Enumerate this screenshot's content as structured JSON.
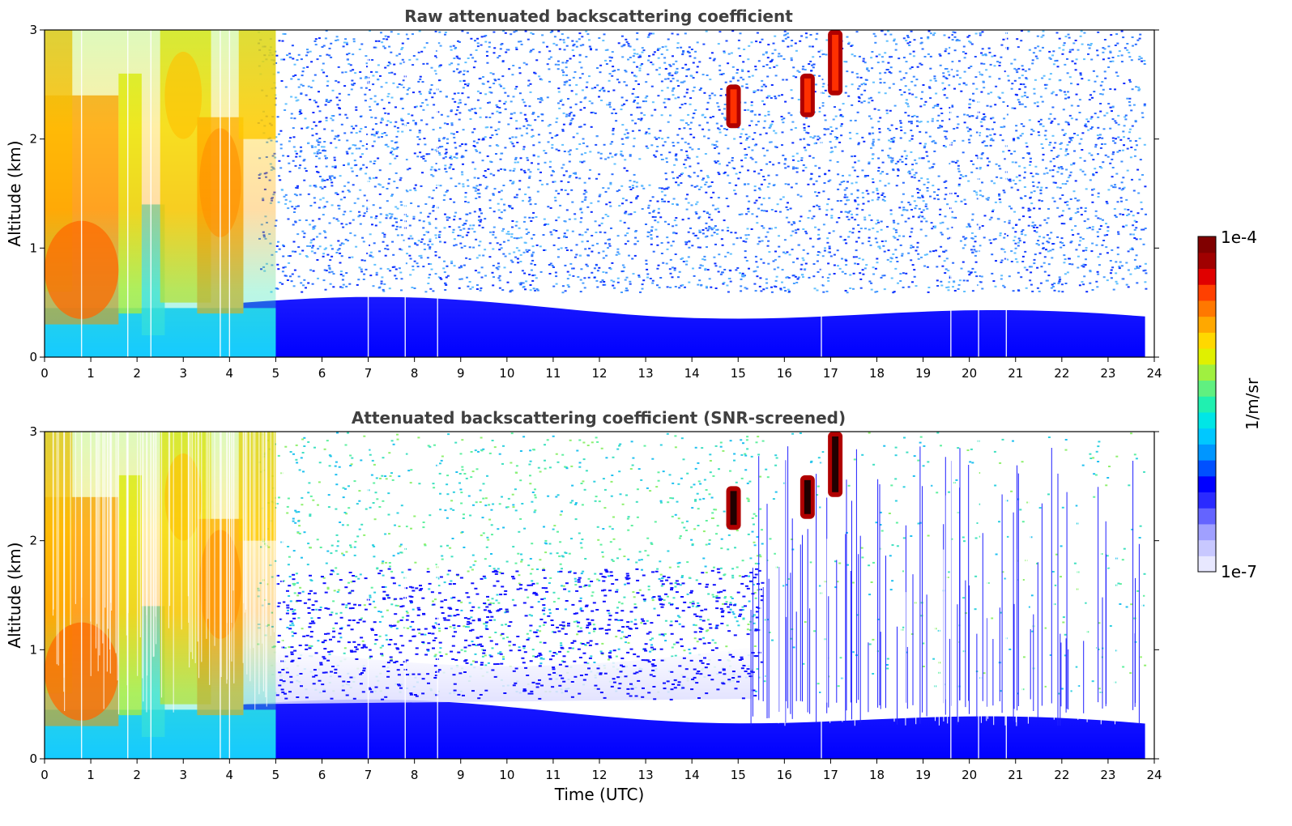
{
  "chart_data": [
    {
      "type": "heatmap",
      "title": "Raw attenuated backscattering coefficient",
      "xlabel": "",
      "ylabel": "Altitude (km)",
      "xlim": [
        0,
        24
      ],
      "ylim": [
        0,
        3
      ],
      "x_ticks": [
        0,
        1,
        2,
        3,
        4,
        5,
        6,
        7,
        8,
        9,
        10,
        11,
        12,
        13,
        14,
        15,
        16,
        17,
        18,
        19,
        20,
        21,
        22,
        23,
        24
      ],
      "y_ticks": [
        0,
        1,
        2,
        3
      ],
      "features": [
        {
          "name": "boundary layer",
          "x_range": [
            4.3,
            23.8
          ],
          "top_km_start": 0.5,
          "top_km_end": 0.35
        },
        {
          "name": "aerosol plume",
          "x_range": [
            0,
            5
          ],
          "y_range": [
            0,
            3
          ]
        },
        {
          "name": "cloud",
          "x": 14.9,
          "y_range": [
            2.1,
            2.5
          ]
        },
        {
          "name": "cloud",
          "x": 16.5,
          "y_range": [
            2.2,
            2.6
          ]
        },
        {
          "name": "cloud",
          "x": 17.1,
          "y_range": [
            2.4,
            3.0
          ]
        }
      ]
    },
    {
      "type": "heatmap",
      "title": "Attenuated backscattering coefficient (SNR-screened)",
      "xlabel": "Time (UTC)",
      "ylabel": "Altitude (km)",
      "xlim": [
        0,
        24
      ],
      "ylim": [
        0,
        3
      ],
      "x_ticks": [
        0,
        1,
        2,
        3,
        4,
        5,
        6,
        7,
        8,
        9,
        10,
        11,
        12,
        13,
        14,
        15,
        16,
        17,
        18,
        19,
        20,
        21,
        22,
        23,
        24
      ],
      "y_ticks": [
        0,
        1,
        2,
        3
      ],
      "features": [
        {
          "name": "boundary layer",
          "x_range": [
            4.3,
            23.8
          ],
          "top_km_start": 0.5,
          "top_km_end": 0.3
        },
        {
          "name": "aerosol plume",
          "x_range": [
            0,
            5
          ],
          "y_range": [
            0,
            3
          ]
        },
        {
          "name": "cloud",
          "x": 14.9,
          "y_range": [
            2.1,
            2.5
          ]
        },
        {
          "name": "cloud",
          "x": 16.5,
          "y_range": [
            2.2,
            2.6
          ]
        },
        {
          "name": "cloud",
          "x": 17.1,
          "y_range": [
            2.4,
            3.0
          ]
        }
      ]
    }
  ],
  "colorbar": {
    "max_label": "1e-4",
    "min_label": "1e-7",
    "label": "1/m/sr",
    "colors": [
      "#e8e8ff",
      "#c8c8ff",
      "#a0a0ff",
      "#6464ff",
      "#2a2aff",
      "#0000ff",
      "#0050ff",
      "#0096ff",
      "#00c8ff",
      "#00e6e6",
      "#20f0b0",
      "#60f080",
      "#a0f040",
      "#e0f000",
      "#ffd800",
      "#ffa800",
      "#ff7800",
      "#ff4000",
      "#e00000",
      "#a00000",
      "#800000"
    ]
  }
}
